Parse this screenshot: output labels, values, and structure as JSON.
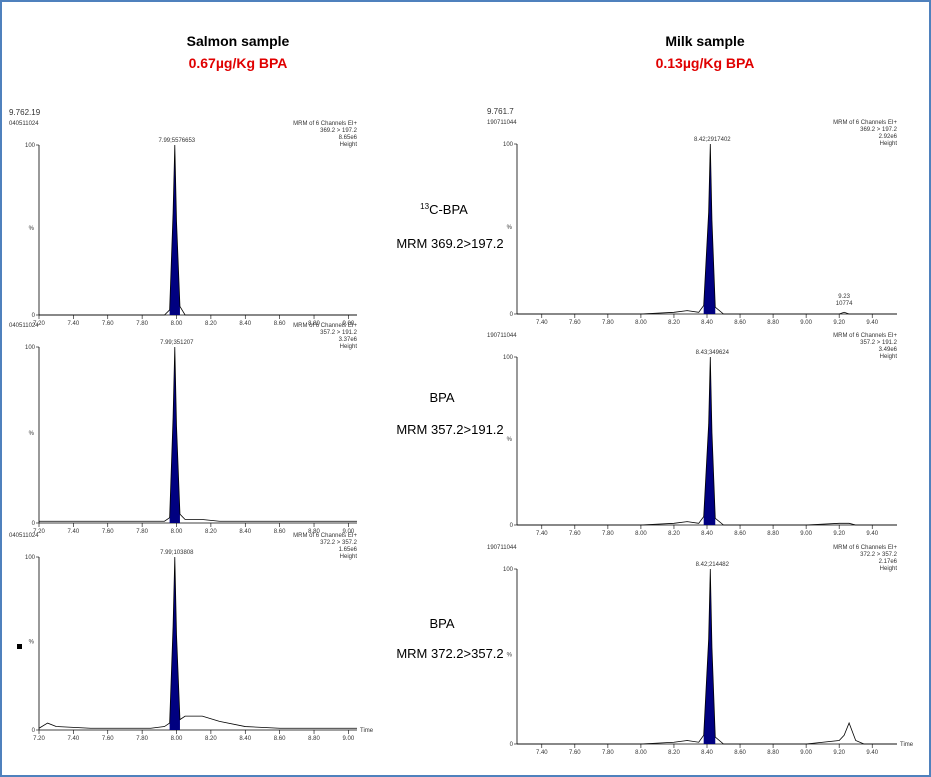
{
  "columns": [
    {
      "title": "Salmon sample",
      "subtitle": "0.67µg/Kg BPA"
    },
    {
      "title": "Milk sample",
      "subtitle": "0.13µg/Kg BPA"
    }
  ],
  "transitions": [
    {
      "isotope": "13",
      "compound": "C-BPA",
      "mrm": "MRM 369.2>197.2"
    },
    {
      "compound": "BPA",
      "mrm": "MRM 357.2>191.2"
    },
    {
      "compound": "BPA",
      "mrm": "MRM 372.2>357.2"
    }
  ],
  "chart_data": [
    {
      "type": "line",
      "run_label": "9.762.19",
      "sample_id": "040511024",
      "channel": "MRM of 6 Channels EI+",
      "transition": "369.2 > 197.2",
      "intensity": "8.65e6",
      "height_label": "Height",
      "peak_label": "7.99;5576653",
      "ylabel": "%",
      "color": "#000080",
      "x": [
        7.2,
        7.25,
        7.3,
        7.5,
        7.7,
        7.85,
        7.93,
        7.96,
        7.98,
        7.99,
        8.0,
        8.02,
        8.05,
        8.15,
        8.25,
        8.4,
        8.6,
        8.8,
        9.05
      ],
      "values": [
        0,
        0,
        0,
        0,
        0,
        0,
        0,
        3,
        60,
        100,
        55,
        5,
        0,
        0,
        0,
        0,
        0,
        0,
        0
      ],
      "xlim": [
        7.2,
        9.05
      ],
      "ylim": [
        0,
        100
      ],
      "yticks": [
        0,
        100
      ],
      "xticks": [
        {
          "value": 7.2,
          "label": "7.20"
        },
        {
          "value": 7.4,
          "label": "7.40"
        },
        {
          "value": 7.6,
          "label": "7.60"
        },
        {
          "value": 7.8,
          "label": "7.80"
        },
        {
          "value": 8.0,
          "label": "8.00"
        },
        {
          "value": 8.2,
          "label": "8.20"
        },
        {
          "value": 8.4,
          "label": "8.40"
        },
        {
          "value": 8.6,
          "label": "8.60"
        },
        {
          "value": 8.8,
          "label": "8.80"
        },
        {
          "value": 9.0,
          "label": "9.00"
        }
      ]
    },
    {
      "type": "line",
      "sample_id": "040511024",
      "channel": "MRM of 6 Channels EI+",
      "transition": "357.2 > 191.2",
      "intensity": "3.37e6",
      "height_label": "Height",
      "peak_label": "7.99;351207",
      "ylabel": "%",
      "color": "#000080",
      "x": [
        7.2,
        7.25,
        7.3,
        7.5,
        7.7,
        7.85,
        7.93,
        7.96,
        7.98,
        7.99,
        8.0,
        8.02,
        8.05,
        8.15,
        8.25,
        8.4,
        8.6,
        8.8,
        9.05
      ],
      "values": [
        1,
        1,
        1,
        1,
        1,
        1,
        1,
        3,
        60,
        100,
        55,
        5,
        2,
        2,
        1,
        1,
        1,
        1,
        1
      ],
      "xlim": [
        7.2,
        9.05
      ],
      "ylim": [
        0,
        100
      ],
      "yticks": [
        0,
        100
      ],
      "xticks": [
        {
          "value": 7.2,
          "label": "7.20"
        },
        {
          "value": 7.4,
          "label": "7.40"
        },
        {
          "value": 7.6,
          "label": "7.60"
        },
        {
          "value": 7.8,
          "label": "7.80"
        },
        {
          "value": 8.0,
          "label": "8.00"
        },
        {
          "value": 8.2,
          "label": "8.20"
        },
        {
          "value": 8.4,
          "label": "8.40"
        },
        {
          "value": 8.6,
          "label": "8.60"
        },
        {
          "value": 8.8,
          "label": "8.80"
        },
        {
          "value": 9.0,
          "label": "9.00"
        }
      ]
    },
    {
      "type": "line",
      "sample_id": "040511024",
      "channel": "MRM of 6 Channels EI+",
      "transition": "372.2 > 357.2",
      "intensity": "1.65e6",
      "height_label": "Height",
      "peak_label": "7.99;103808",
      "ylabel": "%",
      "xlabel": "Time",
      "color": "#000080",
      "x": [
        7.2,
        7.25,
        7.3,
        7.5,
        7.7,
        7.85,
        7.93,
        7.96,
        7.98,
        7.99,
        8.0,
        8.02,
        8.05,
        8.15,
        8.25,
        8.4,
        8.6,
        8.8,
        9.05
      ],
      "values": [
        1,
        4,
        2,
        1,
        1,
        1,
        2,
        4,
        60,
        100,
        55,
        6,
        8,
        8,
        5,
        2,
        1,
        1,
        1
      ],
      "xlim": [
        7.2,
        9.05
      ],
      "ylim": [
        0,
        100
      ],
      "yticks": [
        0,
        100
      ],
      "xticks": [
        {
          "value": 7.2,
          "label": "7.20"
        },
        {
          "value": 7.4,
          "label": "7.40"
        },
        {
          "value": 7.6,
          "label": "7.60"
        },
        {
          "value": 7.8,
          "label": "7.80"
        },
        {
          "value": 8.0,
          "label": "8.00"
        },
        {
          "value": 8.2,
          "label": "8.20"
        },
        {
          "value": 8.4,
          "label": "8.40"
        },
        {
          "value": 8.6,
          "label": "8.60"
        },
        {
          "value": 8.8,
          "label": "8.80"
        },
        {
          "value": 9.0,
          "label": "9.00"
        }
      ]
    },
    {
      "type": "line",
      "run_label": "9.761.7",
      "sample_id": "190711044",
      "channel": "MRM of 6 Channels EI+",
      "transition": "369.2 > 197.2",
      "intensity": "2.92e6",
      "height_label": "Height",
      "peak_label": "8.42;2917402",
      "minor_peak_label": "9.23",
      "minor_peak_height": "10774",
      "ylabel": "%",
      "color": "#000080",
      "x": [
        7.25,
        7.6,
        8.0,
        8.2,
        8.28,
        8.35,
        8.38,
        8.41,
        8.42,
        8.43,
        8.45,
        8.5,
        8.7,
        9.0,
        9.2,
        9.23,
        9.26,
        9.3,
        9.35,
        9.55
      ],
      "values": [
        0,
        0,
        0,
        1,
        2,
        1,
        5,
        60,
        100,
        55,
        4,
        0,
        0,
        0,
        0,
        1,
        0,
        0,
        0,
        0
      ],
      "xlim": [
        7.25,
        9.55
      ],
      "ylim": [
        0,
        100
      ],
      "yticks": [
        0,
        100
      ],
      "xticks": [
        {
          "value": 7.4,
          "label": "7.40"
        },
        {
          "value": 7.6,
          "label": "7.60"
        },
        {
          "value": 7.8,
          "label": "7.80"
        },
        {
          "value": 8.0,
          "label": "8.00"
        },
        {
          "value": 8.2,
          "label": "8.20"
        },
        {
          "value": 8.4,
          "label": "8.40"
        },
        {
          "value": 8.6,
          "label": "8.60"
        },
        {
          "value": 8.8,
          "label": "8.80"
        },
        {
          "value": 9.0,
          "label": "9.00"
        },
        {
          "value": 9.2,
          "label": "9.20"
        },
        {
          "value": 9.4,
          "label": "9.40"
        }
      ]
    },
    {
      "type": "line",
      "sample_id": "190711044",
      "channel": "MRM of 6 Channels EI+",
      "transition": "357.2 > 191.2",
      "intensity": "3.49e6",
      "height_label": "Height",
      "peak_label": "8.43;349624",
      "ylabel": "%",
      "color": "#000080",
      "x": [
        7.25,
        7.6,
        8.0,
        8.2,
        8.28,
        8.35,
        8.38,
        8.41,
        8.42,
        8.43,
        8.45,
        8.5,
        8.7,
        9.0,
        9.2,
        9.23,
        9.26,
        9.3,
        9.35,
        9.55
      ],
      "values": [
        0,
        0,
        0,
        1,
        2,
        1,
        5,
        60,
        100,
        55,
        4,
        0,
        0,
        0,
        1,
        1,
        1,
        0,
        0,
        0
      ],
      "xlim": [
        7.25,
        9.55
      ],
      "ylim": [
        0,
        100
      ],
      "yticks": [
        0,
        100
      ],
      "xticks": [
        {
          "value": 7.4,
          "label": "7.40"
        },
        {
          "value": 7.6,
          "label": "7.60"
        },
        {
          "value": 7.8,
          "label": "7.80"
        },
        {
          "value": 8.0,
          "label": "8.00"
        },
        {
          "value": 8.2,
          "label": "8.20"
        },
        {
          "value": 8.4,
          "label": "8.40"
        },
        {
          "value": 8.6,
          "label": "8.60"
        },
        {
          "value": 8.8,
          "label": "8.80"
        },
        {
          "value": 9.0,
          "label": "9.00"
        },
        {
          "value": 9.2,
          "label": "9.20"
        },
        {
          "value": 9.4,
          "label": "9.40"
        }
      ]
    },
    {
      "type": "line",
      "sample_id": "190711044",
      "channel": "MRM of 6 Channels EI+",
      "transition": "372.2 > 357.2",
      "intensity": "2.17e6",
      "height_label": "Height",
      "peak_label": "8.42;214482",
      "ylabel": "%",
      "xlabel": "Time",
      "color": "#000080",
      "x": [
        7.25,
        7.6,
        8.0,
        8.2,
        8.28,
        8.35,
        8.38,
        8.41,
        8.42,
        8.43,
        8.45,
        8.5,
        8.7,
        9.0,
        9.2,
        9.23,
        9.26,
        9.3,
        9.35,
        9.55
      ],
      "values": [
        0,
        0,
        0,
        1,
        2,
        1,
        5,
        60,
        100,
        55,
        4,
        0,
        0,
        0,
        2,
        5,
        12,
        2,
        0,
        0
      ],
      "xlim": [
        7.25,
        9.55
      ],
      "ylim": [
        0,
        100
      ],
      "yticks": [
        0,
        100
      ],
      "xticks": [
        {
          "value": 7.4,
          "label": "7.40"
        },
        {
          "value": 7.6,
          "label": "7.60"
        },
        {
          "value": 7.8,
          "label": "7.80"
        },
        {
          "value": 8.0,
          "label": "8.00"
        },
        {
          "value": 8.2,
          "label": "8.20"
        },
        {
          "value": 8.4,
          "label": "8.40"
        },
        {
          "value": 8.6,
          "label": "8.60"
        },
        {
          "value": 8.8,
          "label": "8.80"
        },
        {
          "value": 9.0,
          "label": "9.00"
        },
        {
          "value": 9.2,
          "label": "9.20"
        },
        {
          "value": 9.4,
          "label": "9.40"
        }
      ]
    }
  ]
}
